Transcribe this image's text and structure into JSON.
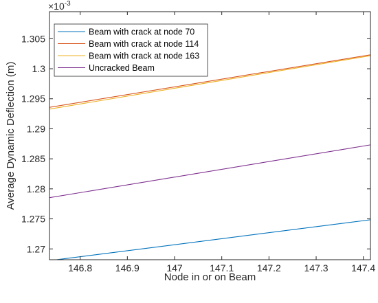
{
  "chart_data": {
    "type": "line",
    "xlabel": "Node in or on Beam",
    "ylabel": "Average Dynamic Deflection (m)",
    "y_exponent_base": "×10",
    "y_exponent_power": "-3",
    "xlim": [
      146.735,
      147.415
    ],
    "ylim": [
      1.2682,
      1.3095
    ],
    "xticks": [
      146.8,
      146.9,
      147,
      147.1,
      147.2,
      147.3,
      147.4
    ],
    "xtick_labels": [
      "146.8",
      "146.9",
      "147",
      "147.1",
      "147.2",
      "147.3",
      "147.4"
    ],
    "yticks": [
      1.27,
      1.275,
      1.28,
      1.285,
      1.29,
      1.295,
      1.3,
      1.305
    ],
    "ytick_labels": [
      "1.27",
      "1.275",
      "1.28",
      "1.285",
      "1.29",
      "1.295",
      "1.3",
      "1.305"
    ],
    "grid": false,
    "legend_position": "top-left",
    "series": [
      {
        "name": "Beam with crack at node 70",
        "color": "#0072BD",
        "x": [
          146.6,
          147.415
        ],
        "y": [
          1.2667,
          1.27485
        ]
      },
      {
        "name": "Beam with crack at node 114",
        "color": "#D95319",
        "x": [
          146.735,
          147.415
        ],
        "y": [
          1.29357,
          1.30232
        ]
      },
      {
        "name": "Beam with crack at node 163",
        "color": "#EDB120",
        "x": [
          146.735,
          147.415
        ],
        "y": [
          1.29328,
          1.30217
        ]
      },
      {
        "name": "Uncracked Beam",
        "color": "#7E2F8E",
        "x": [
          146.735,
          147.415
        ],
        "y": [
          1.27853,
          1.28732
        ]
      }
    ]
  }
}
